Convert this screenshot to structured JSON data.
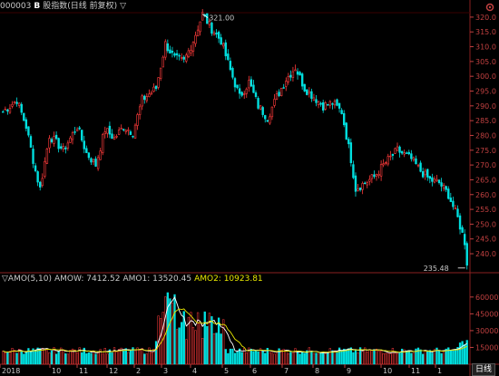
{
  "header": {
    "code": "000003",
    "flag": "B",
    "index_name": "股指数(日线 前复权)",
    "dropdown_icon": "▽"
  },
  "top_control_icon": "gear-icon",
  "price_axis": {
    "ticks": [
      "320.0",
      "315.0",
      "310.0",
      "305.0",
      "300.0",
      "295.0",
      "290.0",
      "285.0",
      "280.0",
      "275.0",
      "270.0",
      "265.0",
      "260.0",
      "255.0",
      "250.0",
      "245.0",
      "240.0"
    ],
    "min": 235.48,
    "max": 321.0
  },
  "annotations": {
    "high_label": "321.00",
    "low_label": "235.48"
  },
  "volume_header": {
    "title": "▽AMO(5,10)",
    "amow_label": "AMOW: 7412.52",
    "amo1_label": "AMO1: 13520.45",
    "amo2_label": "AMO2: 10923.81"
  },
  "volume_axis": {
    "ticks": [
      "60000",
      "45000",
      "30000",
      "15000"
    ]
  },
  "x_axis": {
    "labels": [
      "2018",
      "10",
      "11",
      "12",
      "2",
      "3",
      "4",
      "5",
      "6",
      "7",
      "8",
      "9",
      "10",
      "11",
      "1"
    ]
  },
  "period_tab": "日线",
  "colors": {
    "up": "#ff3b3b",
    "down": "#00e0e0",
    "axis": "#c04040",
    "amo1": "#ffffff",
    "amo2": "#e8e800"
  }
}
